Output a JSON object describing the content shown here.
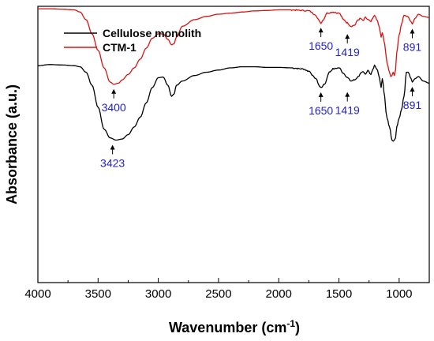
{
  "chart_data": {
    "type": "line",
    "xlabel": "Wavenumber (cm",
    "xlabel_sup": "-1",
    "xlabel_end": ")",
    "ylabel": "Absorbance (a.u.)",
    "xlim": [
      4000,
      750
    ],
    "x_reversed": true,
    "xticks": [
      4000,
      3500,
      3000,
      2500,
      2000,
      1500,
      1000
    ],
    "ylim": [
      0,
      100
    ],
    "y_tick_labels_shown": false,
    "grid": false,
    "legend": {
      "placement": "top-left"
    },
    "series": [
      {
        "name": "Cellulose monolith",
        "color": "#000000",
        "points": [
          [
            4000,
            76
          ],
          [
            3900,
            76.5
          ],
          [
            3800,
            76.3
          ],
          [
            3700,
            76
          ],
          [
            3650,
            75.5
          ],
          [
            3600,
            73
          ],
          [
            3550,
            67
          ],
          [
            3500,
            57
          ],
          [
            3450,
            47
          ],
          [
            3400,
            43
          ],
          [
            3350,
            42
          ],
          [
            3300,
            42.5
          ],
          [
            3250,
            44.5
          ],
          [
            3200,
            48
          ],
          [
            3150,
            52.5
          ],
          [
            3100,
            59
          ],
          [
            3050,
            66
          ],
          [
            3000,
            70.5
          ],
          [
            2960,
            70.8
          ],
          [
            2920,
            67
          ],
          [
            2890,
            62
          ],
          [
            2870,
            63
          ],
          [
            2850,
            67
          ],
          [
            2800,
            69
          ],
          [
            2700,
            71.5
          ],
          [
            2600,
            73
          ],
          [
            2500,
            74
          ],
          [
            2400,
            75
          ],
          [
            2300,
            75.5
          ],
          [
            2200,
            75.5
          ],
          [
            2100,
            75.2
          ],
          [
            2000,
            75.2
          ],
          [
            1900,
            75
          ],
          [
            1800,
            74.5
          ],
          [
            1750,
            73.5
          ],
          [
            1700,
            70.5
          ],
          [
            1650,
            66
          ],
          [
            1620,
            67.5
          ],
          [
            1580,
            73
          ],
          [
            1550,
            74.5
          ],
          [
            1500,
            75
          ],
          [
            1460,
            72.5
          ],
          [
            1430,
            70.5
          ],
          [
            1400,
            69
          ],
          [
            1370,
            69.5
          ],
          [
            1340,
            71
          ],
          [
            1320,
            72.5
          ],
          [
            1300,
            73
          ],
          [
            1280,
            72
          ],
          [
            1260,
            74
          ],
          [
            1235,
            72
          ],
          [
            1220,
            74
          ],
          [
            1205,
            76
          ],
          [
            1180,
            74
          ],
          [
            1162,
            70
          ],
          [
            1150,
            66
          ],
          [
            1140,
            70
          ],
          [
            1120,
            62
          ],
          [
            1110,
            55
          ],
          [
            1100,
            52
          ],
          [
            1080,
            48
          ],
          [
            1060,
            42
          ],
          [
            1050,
            41.5
          ],
          [
            1040,
            42
          ],
          [
            1030,
            43
          ],
          [
            1020,
            48
          ],
          [
            1000,
            52
          ],
          [
            980,
            56
          ],
          [
            960,
            62
          ],
          [
            940,
            73
          ],
          [
            925,
            73
          ],
          [
            900,
            70
          ],
          [
            891,
            68.5
          ],
          [
            870,
            70
          ],
          [
            840,
            71
          ],
          [
            800,
            69
          ],
          [
            750,
            68
          ]
        ]
      },
      {
        "name": "CTM-1",
        "color": "#dd1111",
        "points": [
          [
            4000,
            102
          ],
          [
            3900,
            102
          ],
          [
            3800,
            101.8
          ],
          [
            3700,
            101.5
          ],
          [
            3650,
            100.5
          ],
          [
            3600,
            97
          ],
          [
            3550,
            90.5
          ],
          [
            3500,
            83
          ],
          [
            3450,
            75
          ],
          [
            3400,
            68.5
          ],
          [
            3370,
            67.5
          ],
          [
            3330,
            68
          ],
          [
            3300,
            69.5
          ],
          [
            3250,
            72
          ],
          [
            3200,
            75
          ],
          [
            3150,
            79
          ],
          [
            3100,
            84
          ],
          [
            3050,
            88.5
          ],
          [
            3000,
            90.5
          ],
          [
            2960,
            90.5
          ],
          [
            2920,
            88
          ],
          [
            2890,
            85.5
          ],
          [
            2870,
            86
          ],
          [
            2850,
            89
          ],
          [
            2800,
            94
          ],
          [
            2700,
            97
          ],
          [
            2600,
            98.5
          ],
          [
            2500,
            99.5
          ],
          [
            2400,
            100
          ],
          [
            2300,
            100.5
          ],
          [
            2200,
            101
          ],
          [
            2100,
            101.2
          ],
          [
            2000,
            101.5
          ],
          [
            1900,
            101.5
          ],
          [
            1800,
            101.2
          ],
          [
            1750,
            101
          ],
          [
            1700,
            99.5
          ],
          [
            1670,
            97
          ],
          [
            1650,
            95.5
          ],
          [
            1630,
            97
          ],
          [
            1600,
            100
          ],
          [
            1550,
            100.5
          ],
          [
            1500,
            100
          ],
          [
            1460,
            97
          ],
          [
            1430,
            95.5
          ],
          [
            1400,
            94
          ],
          [
            1370,
            94.5
          ],
          [
            1340,
            97
          ],
          [
            1320,
            97.5
          ],
          [
            1300,
            96.5
          ],
          [
            1280,
            98
          ],
          [
            1260,
            97
          ],
          [
            1235,
            96
          ],
          [
            1220,
            97.5
          ],
          [
            1205,
            99
          ],
          [
            1180,
            96.5
          ],
          [
            1162,
            93
          ],
          [
            1150,
            89
          ],
          [
            1140,
            91
          ],
          [
            1120,
            86
          ],
          [
            1110,
            81
          ],
          [
            1100,
            77
          ],
          [
            1080,
            73
          ],
          [
            1070,
            71
          ],
          [
            1060,
            71.5
          ],
          [
            1050,
            73
          ],
          [
            1040,
            71.5
          ],
          [
            1030,
            74
          ],
          [
            1020,
            82
          ],
          [
            1000,
            90
          ],
          [
            980,
            95
          ],
          [
            960,
            99
          ],
          [
            930,
            98.5
          ],
          [
            900,
            96
          ],
          [
            891,
            95
          ],
          [
            870,
            97.5
          ],
          [
            840,
            99.5
          ],
          [
            800,
            98.5
          ],
          [
            750,
            98
          ]
        ]
      }
    ],
    "annotations": [
      {
        "series": "CTM-1",
        "text": "3400",
        "x": 3370,
        "y": 67.5,
        "label_side": "below"
      },
      {
        "series": "CTM-1",
        "text": "1650",
        "x": 1650,
        "y": 95.5,
        "label_side": "below"
      },
      {
        "series": "CTM-1",
        "text": "1419",
        "x": 1430,
        "y": 95.5,
        "label_side": "below_far"
      },
      {
        "series": "CTM-1",
        "text": "891",
        "x": 891,
        "y": 95,
        "label_side": "below"
      },
      {
        "series": "Cellulose monolith",
        "text": "1650",
        "x": 1650,
        "y": 66,
        "label_side": "below"
      },
      {
        "series": "Cellulose monolith",
        "text": "1419",
        "x": 1430,
        "y": 69,
        "label_side": "below_far"
      },
      {
        "series": "Cellulose monolith",
        "text": "891",
        "x": 891,
        "y": 68.5,
        "label_side": "below"
      },
      {
        "series": "Cellulose monolith",
        "text": "3423",
        "x": 3380,
        "y": 42,
        "label_side": "below"
      }
    ]
  }
}
